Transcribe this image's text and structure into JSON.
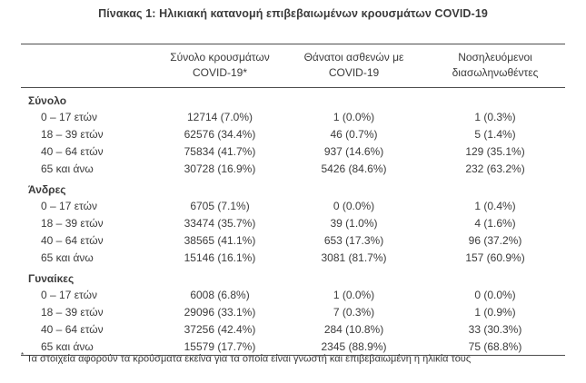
{
  "title": "Πίνακας 1: Ηλικιακή κατανομή επιβεβαιωμένων κρουσμάτων COVID-19",
  "colors": {
    "background": "#ffffff",
    "text": "#3b3b3b",
    "rule": "#4d4d4d"
  },
  "table": {
    "columns": [
      {
        "line1": "Σύνολο κρουσμάτων",
        "line2": "COVID-19*"
      },
      {
        "line1": "Θάνατοι ασθενών με",
        "line2": "COVID-19"
      },
      {
        "line1": "Νοσηλευόμενοι",
        "line2": "διασωληνωθέντες"
      }
    ],
    "groups": [
      {
        "label": "Σύνολο",
        "rows": [
          {
            "age": "0 – 17 ετών",
            "cases": "12714 (7.0%)",
            "deaths": "1 (0.0%)",
            "intubated": "1 (0.3%)"
          },
          {
            "age": "18 – 39 ετών",
            "cases": "62576 (34.4%)",
            "deaths": "46 (0.7%)",
            "intubated": "5 (1.4%)"
          },
          {
            "age": "40 – 64 ετών",
            "cases": "75834 (41.7%)",
            "deaths": "937 (14.6%)",
            "intubated": "129 (35.1%)"
          },
          {
            "age": "65 και άνω",
            "cases": "30728 (16.9%)",
            "deaths": "5426 (84.6%)",
            "intubated": "232 (63.2%)"
          }
        ]
      },
      {
        "label": "Άνδρες",
        "rows": [
          {
            "age": "0 – 17 ετών",
            "cases": "6705 (7.1%)",
            "deaths": "0 (0.0%)",
            "intubated": "1 (0.4%)"
          },
          {
            "age": "18 – 39 ετών",
            "cases": "33474 (35.7%)",
            "deaths": "39 (1.0%)",
            "intubated": "4 (1.6%)"
          },
          {
            "age": "40 – 64 ετών",
            "cases": "38565 (41.1%)",
            "deaths": "653 (17.3%)",
            "intubated": "96 (37.2%)"
          },
          {
            "age": "65 και άνω",
            "cases": "15146 (16.1%)",
            "deaths": "3081 (81.7%)",
            "intubated": "157 (60.9%)"
          }
        ]
      },
      {
        "label": "Γυναίκες",
        "rows": [
          {
            "age": "0 – 17 ετών",
            "cases": "6008 (6.8%)",
            "deaths": "1 (0.0%)",
            "intubated": "0 (0.0%)"
          },
          {
            "age": "18 – 39 ετών",
            "cases": "29096 (33.1%)",
            "deaths": "7 (0.3%)",
            "intubated": "1 (0.9%)"
          },
          {
            "age": "40 – 64 ετών",
            "cases": "37256 (42.4%)",
            "deaths": "284 (10.8%)",
            "intubated": "33 (30.3%)"
          },
          {
            "age": "65 και άνω",
            "cases": "15579 (17.7%)",
            "deaths": "2345 (88.9%)",
            "intubated": "75 (68.8%)"
          }
        ]
      }
    ]
  },
  "footnote": {
    "marker": "*",
    "text": "Τα στοιχεία αφορούν τα κρούσματα εκείνα για τα οποία είναι γνωστή και επιβεβαιωμένη η ηλικία τους"
  }
}
